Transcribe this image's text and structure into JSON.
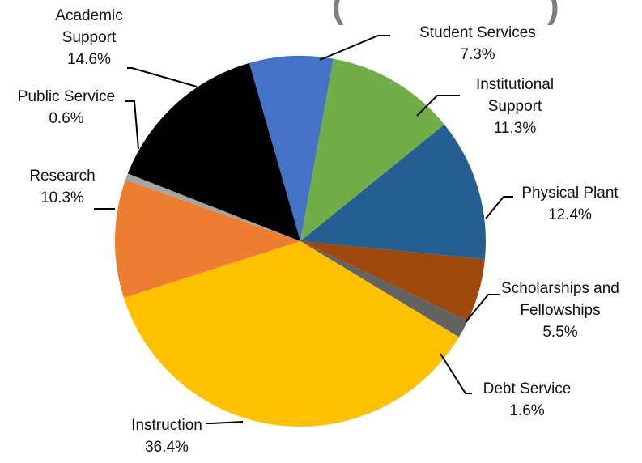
{
  "chart_data": {
    "type": "pie",
    "title": "",
    "slices": [
      {
        "label": "Student Services",
        "value": 7.3,
        "display": "7.3%",
        "color": "#4472C4"
      },
      {
        "label": "Institutional Support",
        "value": 11.3,
        "display": "11.3%",
        "color": "#70AD47"
      },
      {
        "label": "Physical Plant",
        "value": 12.4,
        "display": "12.4%",
        "color": "#255E91"
      },
      {
        "label": "Scholarships and Fellowships",
        "value": 5.5,
        "display": "5.5%",
        "color": "#9E480E"
      },
      {
        "label": "Debt Service",
        "value": 1.6,
        "display": "1.6%",
        "color": "#636363"
      },
      {
        "label": "Instruction",
        "value": 36.4,
        "display": "36.4%",
        "color": "#FFC000"
      },
      {
        "label": "Research",
        "value": 10.3,
        "display": "10.3%",
        "color": "#ED7D31"
      },
      {
        "label": "Public Service",
        "value": 0.6,
        "display": "0.6%",
        "color": "#A5A5A5"
      },
      {
        "label": "Academic Support",
        "value": 14.6,
        "display": "14.6%",
        "color": "#000000"
      }
    ],
    "start_angle_deg": 344,
    "direction": "clockwise"
  }
}
